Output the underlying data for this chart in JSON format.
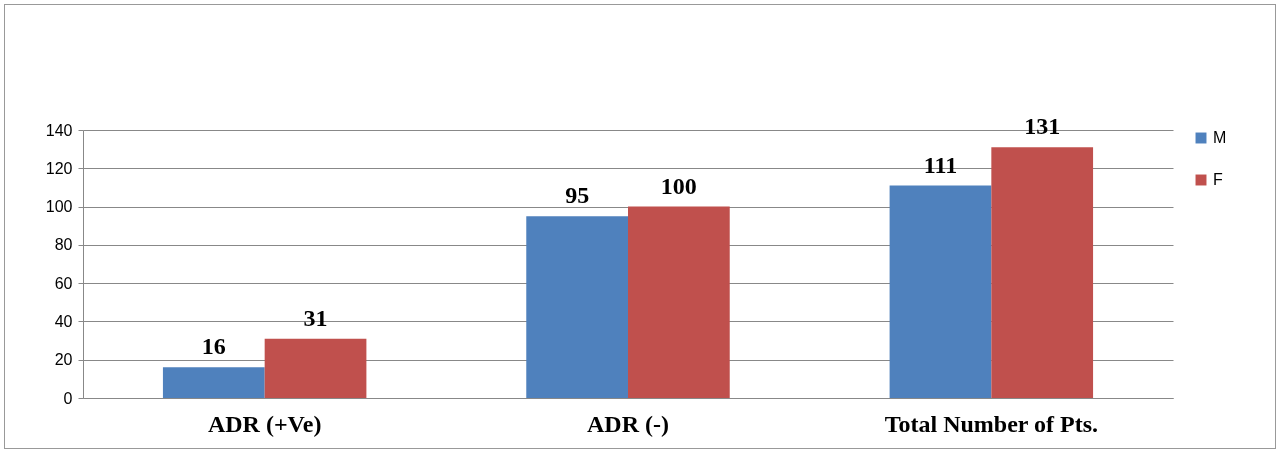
{
  "chart_data": {
    "type": "bar",
    "categories": [
      "ADR (+Ve)",
      "ADR (-)",
      "Total Number of Pts."
    ],
    "series": [
      {
        "name": "M",
        "color": "#4f81bd",
        "values": [
          16,
          95,
          111
        ]
      },
      {
        "name": "F",
        "color": "#c0504d",
        "values": [
          31,
          100,
          131
        ]
      }
    ],
    "ylim": [
      0,
      140
    ],
    "yticks": [
      0,
      20,
      40,
      60,
      80,
      100,
      120,
      140
    ],
    "grid": "y",
    "legend": "right",
    "data_labels": true
  }
}
